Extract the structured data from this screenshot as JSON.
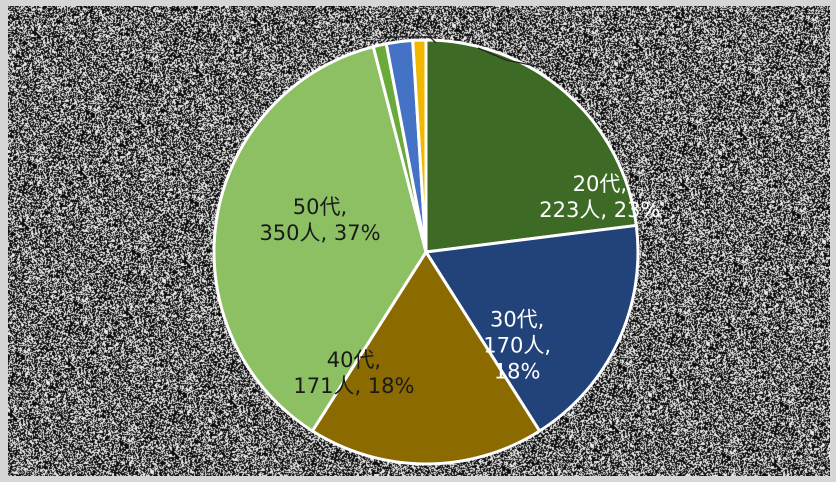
{
  "chart_data": {
    "type": "pie",
    "slices": [
      {
        "label": "20代",
        "count": "223人",
        "percent": "23%",
        "value": 23,
        "color": "#3d6b26",
        "text_lines": [
          "20代,",
          "223人, 23%"
        ],
        "text_color": "#ffffff"
      },
      {
        "label": "30代",
        "count": "170人",
        "percent": "18%",
        "value": 18,
        "color": "#22427a",
        "text_lines": [
          "30代,",
          "170人,",
          "18%"
        ],
        "text_color": "#ffffff"
      },
      {
        "label": "40代",
        "count": "171人",
        "percent": "18%",
        "value": 18,
        "color": "#8b6a00",
        "text_lines": [
          "40代,",
          "171人, 18%"
        ],
        "text_color": "#1a1a1a"
      },
      {
        "label": "50代",
        "count": "350人",
        "percent": "37%",
        "value": 37,
        "color": "#8cc063",
        "text_lines": [
          "50代,",
          "350人, 37%"
        ],
        "text_color": "#1a1a1a"
      },
      {
        "label": "",
        "count": "",
        "percent": "",
        "value": 1,
        "color": "#6aaa3a",
        "text_lines": [],
        "text_color": "#1a1a1a"
      },
      {
        "label": "",
        "count": "",
        "percent": "",
        "value": 2,
        "color": "#4472c4",
        "text_lines": [],
        "text_color": "#1a1a1a"
      },
      {
        "label": "",
        "count": "",
        "percent": "",
        "value": 1,
        "color": "#f2b800",
        "text_lines": [],
        "text_color": "#1a1a1a"
      }
    ],
    "start_angle_deg": 0,
    "direction": "clockwise",
    "slice_border_color": "#ffffff",
    "background": "noisy black-and-white texture",
    "legend": "none"
  }
}
